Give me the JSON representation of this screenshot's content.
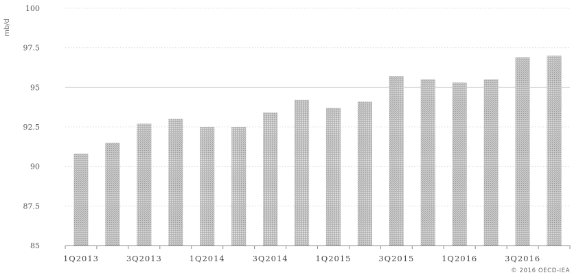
{
  "chart_data": {
    "type": "bar",
    "ylabel": "mb/d",
    "ylim": [
      85,
      100
    ],
    "yticks": [
      85,
      87.5,
      90,
      92.5,
      95,
      97.5,
      100
    ],
    "ytick_labels": [
      "85",
      "87.5",
      "90",
      "92.5",
      "95",
      "97.5",
      "100"
    ],
    "categories": [
      "1Q2013",
      "2Q2013",
      "3Q2013",
      "4Q2013",
      "1Q2014",
      "2Q2014",
      "3Q2014",
      "4Q2014",
      "1Q2015",
      "2Q2015",
      "3Q2015",
      "4Q2015",
      "1Q2016",
      "2Q2016",
      "3Q2016",
      "4Q2016"
    ],
    "values": [
      90.8,
      91.5,
      92.7,
      93.0,
      92.5,
      92.5,
      93.4,
      94.2,
      93.7,
      94.1,
      95.7,
      95.5,
      95.3,
      95.5,
      96.9,
      97.0
    ],
    "xtick_labels": [
      "1Q2013",
      "3Q2013",
      "1Q2014",
      "3Q2014",
      "1Q2015",
      "3Q2015",
      "1Q2016",
      "3Q2016"
    ],
    "bar_color": "#c2c2c2",
    "grid": true,
    "grid_color": "#cfcfcf",
    "credit": "© 2016 OECD-IEA"
  }
}
